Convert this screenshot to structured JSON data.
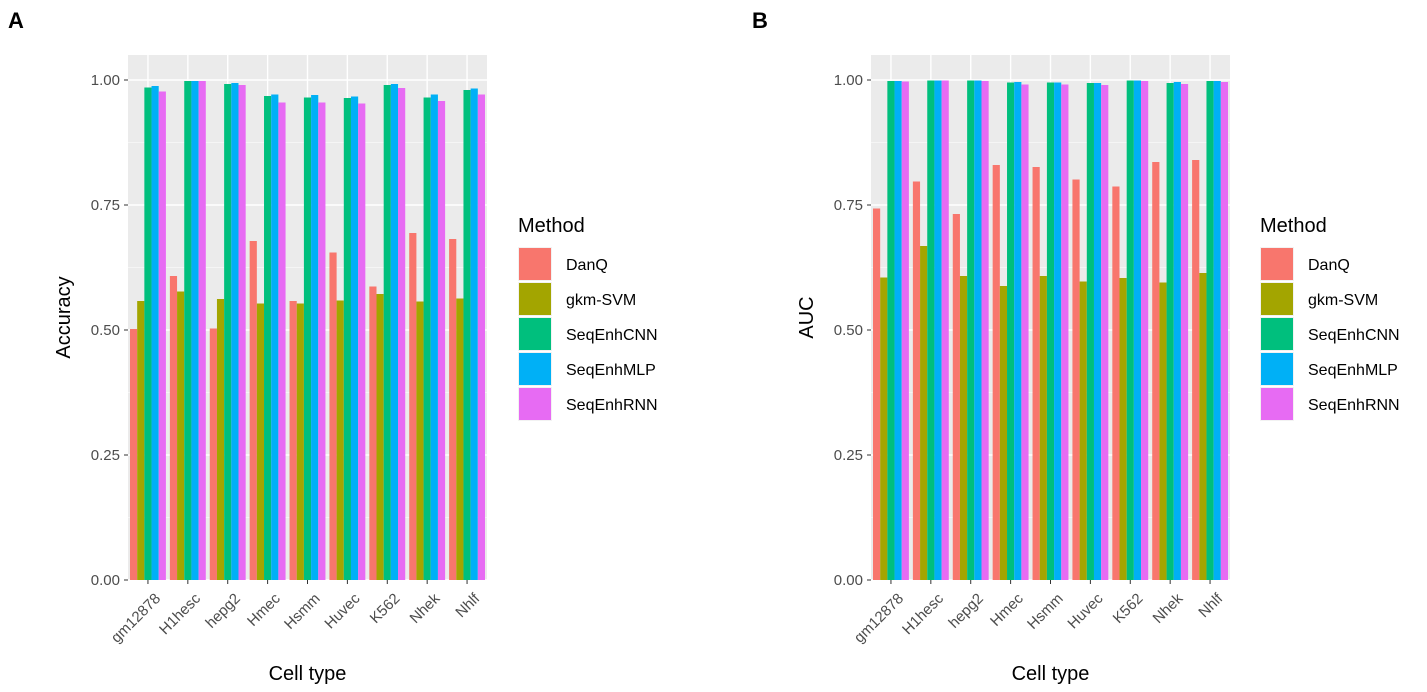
{
  "panels": [
    {
      "tag": "A",
      "chart_data": {
        "type": "bar",
        "categories": [
          "gm12878",
          "H1hesc",
          "hepg2",
          "Hmec",
          "Hsmm",
          "Huvec",
          "K562",
          "Nhek",
          "Nhlf"
        ],
        "series": [
          {
            "name": "DanQ",
            "color": "#F8766D",
            "values": [
              0.502,
              0.608,
              0.503,
              0.678,
              0.558,
              0.655,
              0.587,
              0.694,
              0.682
            ]
          },
          {
            "name": "gkm-SVM",
            "color": "#A3A500",
            "values": [
              0.558,
              0.577,
              0.562,
              0.553,
              0.553,
              0.559,
              0.572,
              0.557,
              0.563
            ]
          },
          {
            "name": "SeqEnhCNN",
            "color": "#00BF7D",
            "values": [
              0.985,
              0.998,
              0.992,
              0.968,
              0.965,
              0.964,
              0.99,
              0.965,
              0.98
            ]
          },
          {
            "name": "SeqEnhMLP",
            "color": "#00B0F6",
            "values": [
              0.988,
              0.998,
              0.994,
              0.971,
              0.97,
              0.967,
              0.992,
              0.971,
              0.983
            ]
          },
          {
            "name": "SeqEnhRNN",
            "color": "#E76BF3",
            "values": [
              0.977,
              0.998,
              0.99,
              0.955,
              0.955,
              0.953,
              0.984,
              0.958,
              0.971
            ]
          }
        ],
        "xlabel": "Cell type",
        "ylabel": "Accuracy",
        "ylim": [
          0,
          1.05
        ],
        "yticks": [
          "0.00",
          "0.25",
          "0.50",
          "0.75",
          "1.00"
        ],
        "grid": true,
        "legend": {
          "title": "Method",
          "position": "right"
        }
      }
    },
    {
      "tag": "B",
      "chart_data": {
        "type": "bar",
        "categories": [
          "gm12878",
          "H1hesc",
          "hepg2",
          "Hmec",
          "Hsmm",
          "Huvec",
          "K562",
          "Nhek",
          "Nhlf"
        ],
        "series": [
          {
            "name": "DanQ",
            "color": "#F8766D",
            "values": [
              0.743,
              0.797,
              0.732,
              0.83,
              0.826,
              0.801,
              0.787,
              0.836,
              0.84
            ]
          },
          {
            "name": "gkm-SVM",
            "color": "#A3A500",
            "values": [
              0.605,
              0.668,
              0.608,
              0.588,
              0.608,
              0.597,
              0.604,
              0.595,
              0.614
            ]
          },
          {
            "name": "SeqEnhCNN",
            "color": "#00BF7D",
            "values": [
              0.998,
              0.999,
              0.999,
              0.995,
              0.995,
              0.994,
              0.999,
              0.994,
              0.998
            ]
          },
          {
            "name": "SeqEnhMLP",
            "color": "#00B0F6",
            "values": [
              0.998,
              0.999,
              0.999,
              0.996,
              0.995,
              0.994,
              0.999,
              0.996,
              0.998
            ]
          },
          {
            "name": "SeqEnhRNN",
            "color": "#E76BF3",
            "values": [
              0.997,
              0.999,
              0.998,
              0.991,
              0.991,
              0.99,
              0.998,
              0.992,
              0.996
            ]
          }
        ],
        "xlabel": "Cell type",
        "ylabel": "AUC",
        "ylim": [
          0,
          1.05
        ],
        "yticks": [
          "0.00",
          "0.25",
          "0.50",
          "0.75",
          "1.00"
        ],
        "grid": true,
        "legend": {
          "title": "Method",
          "position": "right"
        }
      }
    }
  ]
}
